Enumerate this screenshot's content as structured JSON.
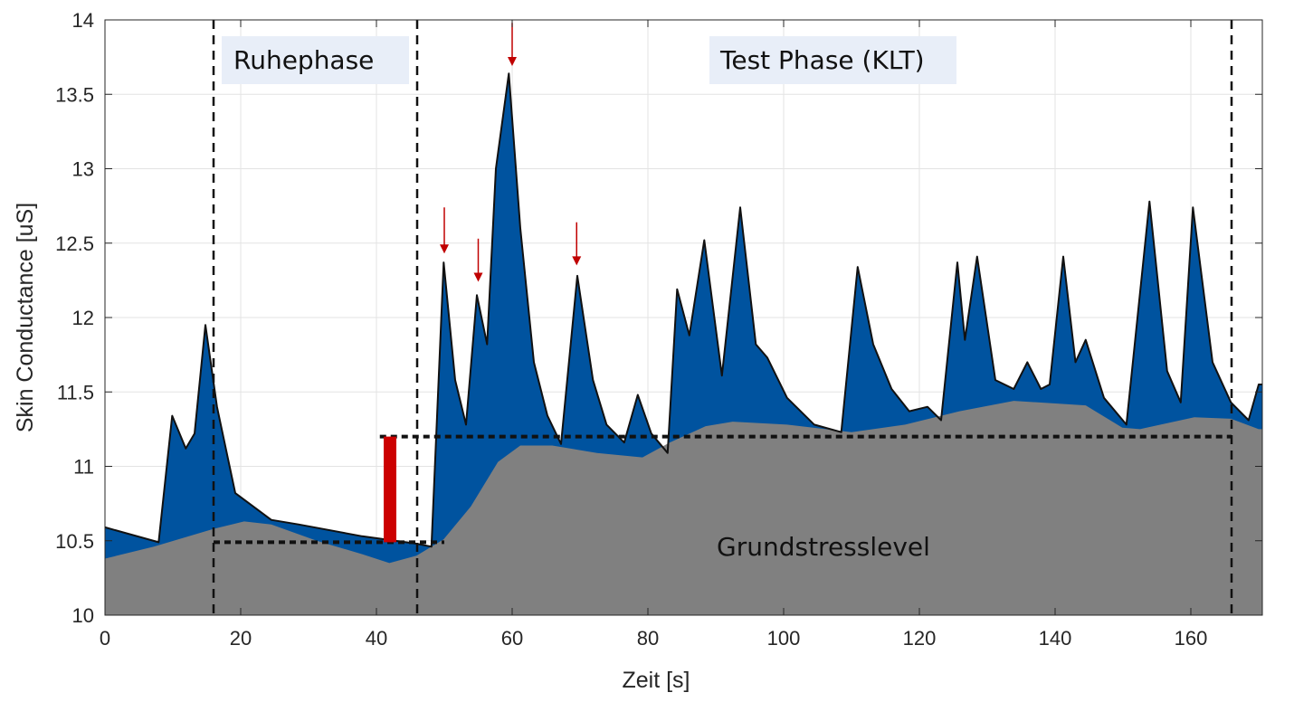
{
  "chart_data": {
    "type": "area",
    "title": "",
    "xlabel": "Zeit [s]",
    "ylabel": "Skin Conductance [uS]",
    "xlim": [
      0,
      170
    ],
    "ylim": [
      10,
      14
    ],
    "grid": true,
    "xticks": [
      0,
      20,
      40,
      60,
      80,
      100,
      120,
      140,
      160
    ],
    "yticks": [
      10,
      10.5,
      11,
      11.5,
      12,
      12.5,
      13,
      13.5,
      14
    ],
    "colors": {
      "signal": "#00539f",
      "baseline": "#808080",
      "marker": "#cc0000",
      "label_box": "#e8eef8"
    },
    "series": [
      {
        "role": "signal",
        "points": [
          [
            0,
            10.59
          ],
          [
            7.9,
            10.49
          ],
          [
            9.9,
            11.34
          ],
          [
            11.9,
            11.12
          ],
          [
            13.2,
            11.22
          ],
          [
            14.8,
            11.95
          ],
          [
            16.5,
            11.4
          ],
          [
            19.2,
            10.82
          ],
          [
            24.5,
            10.64
          ],
          [
            28.5,
            10.61
          ],
          [
            37.9,
            10.53
          ],
          [
            45.9,
            10.48
          ],
          [
            48.1,
            10.46
          ],
          [
            49.9,
            12.37
          ],
          [
            51.6,
            11.58
          ],
          [
            53.2,
            11.28
          ],
          [
            54.8,
            12.15
          ],
          [
            56.3,
            11.82
          ],
          [
            57.6,
            13.0
          ],
          [
            59.5,
            13.64
          ],
          [
            61.2,
            12.6
          ],
          [
            63.2,
            11.7
          ],
          [
            65.2,
            11.34
          ],
          [
            67.2,
            11.15
          ],
          [
            69.6,
            12.28
          ],
          [
            71.9,
            11.58
          ],
          [
            73.9,
            11.28
          ],
          [
            76.5,
            11.16
          ],
          [
            78.5,
            11.48
          ],
          [
            80.5,
            11.22
          ],
          [
            82.9,
            11.09
          ],
          [
            84.3,
            12.19
          ],
          [
            86.1,
            11.88
          ],
          [
            88.3,
            12.52
          ],
          [
            90.9,
            11.61
          ],
          [
            93.6,
            12.74
          ],
          [
            95.9,
            11.82
          ],
          [
            97.6,
            11.73
          ],
          [
            100.5,
            11.46
          ],
          [
            104.5,
            11.28
          ],
          [
            108.5,
            11.23
          ],
          [
            110.9,
            12.34
          ],
          [
            113.2,
            11.82
          ],
          [
            115.9,
            11.52
          ],
          [
            118.5,
            11.37
          ],
          [
            121.2,
            11.4
          ],
          [
            123.2,
            11.31
          ],
          [
            125.6,
            12.37
          ],
          [
            126.7,
            11.85
          ],
          [
            128.5,
            12.41
          ],
          [
            131.2,
            11.58
          ],
          [
            133.9,
            11.52
          ],
          [
            135.9,
            11.7
          ],
          [
            137.9,
            11.52
          ],
          [
            139.2,
            11.55
          ],
          [
            141.2,
            12.41
          ],
          [
            143.0,
            11.7
          ],
          [
            144.5,
            11.85
          ],
          [
            147.2,
            11.46
          ],
          [
            150.5,
            11.28
          ],
          [
            153.9,
            12.78
          ],
          [
            156.5,
            11.64
          ],
          [
            158.5,
            11.43
          ],
          [
            160.3,
            12.74
          ],
          [
            163.2,
            11.7
          ],
          [
            165.9,
            11.43
          ],
          [
            168.5,
            11.31
          ],
          [
            170,
            11.55
          ]
        ]
      },
      {
        "role": "baseline",
        "points": [
          [
            0,
            10.38
          ],
          [
            7.2,
            10.46
          ],
          [
            16,
            10.58
          ],
          [
            20.5,
            10.63
          ],
          [
            24.5,
            10.61
          ],
          [
            31.2,
            10.5
          ],
          [
            37.9,
            10.41
          ],
          [
            41.9,
            10.35
          ],
          [
            45.9,
            10.4
          ],
          [
            49.9,
            10.51
          ],
          [
            53.9,
            10.73
          ],
          [
            57.9,
            11.03
          ],
          [
            61.2,
            11.14
          ],
          [
            65.9,
            11.14
          ],
          [
            72.5,
            11.09
          ],
          [
            79.2,
            11.06
          ],
          [
            83.2,
            11.16
          ],
          [
            88.5,
            11.27
          ],
          [
            92.5,
            11.3
          ],
          [
            100.5,
            11.28
          ],
          [
            110,
            11.23
          ],
          [
            117.9,
            11.28
          ],
          [
            125.9,
            11.37
          ],
          [
            133.9,
            11.44
          ],
          [
            144.5,
            11.41
          ],
          [
            149.9,
            11.26
          ],
          [
            152.5,
            11.25
          ],
          [
            160.5,
            11.33
          ],
          [
            165.9,
            11.32
          ],
          [
            170,
            11.25
          ]
        ]
      }
    ],
    "phase_lines_x": [
      16,
      46,
      166
    ],
    "level_lines": [
      {
        "y": 10.49,
        "x_from": 16,
        "x_to": 50
      },
      {
        "y": 11.2,
        "x_from": 40.5,
        "x_to": 166
      }
    ],
    "difference_bar": {
      "x": 42,
      "y_from": 10.49,
      "y_to": 11.2
    },
    "arrows": [
      {
        "x": 50,
        "y_tail": 12.74,
        "y_tip": 12.43
      },
      {
        "x": 55,
        "y_tail": 12.53,
        "y_tip": 12.24
      },
      {
        "x": 60,
        "y_tail": 13.98,
        "y_tip": 13.69
      },
      {
        "x": 69.5,
        "y_tail": 12.64,
        "y_tip": 12.35
      }
    ],
    "annotations": {
      "rest": "Ruhephase",
      "test": "Test Phase (KLT)",
      "baseline": "Grundstresslevel"
    }
  }
}
